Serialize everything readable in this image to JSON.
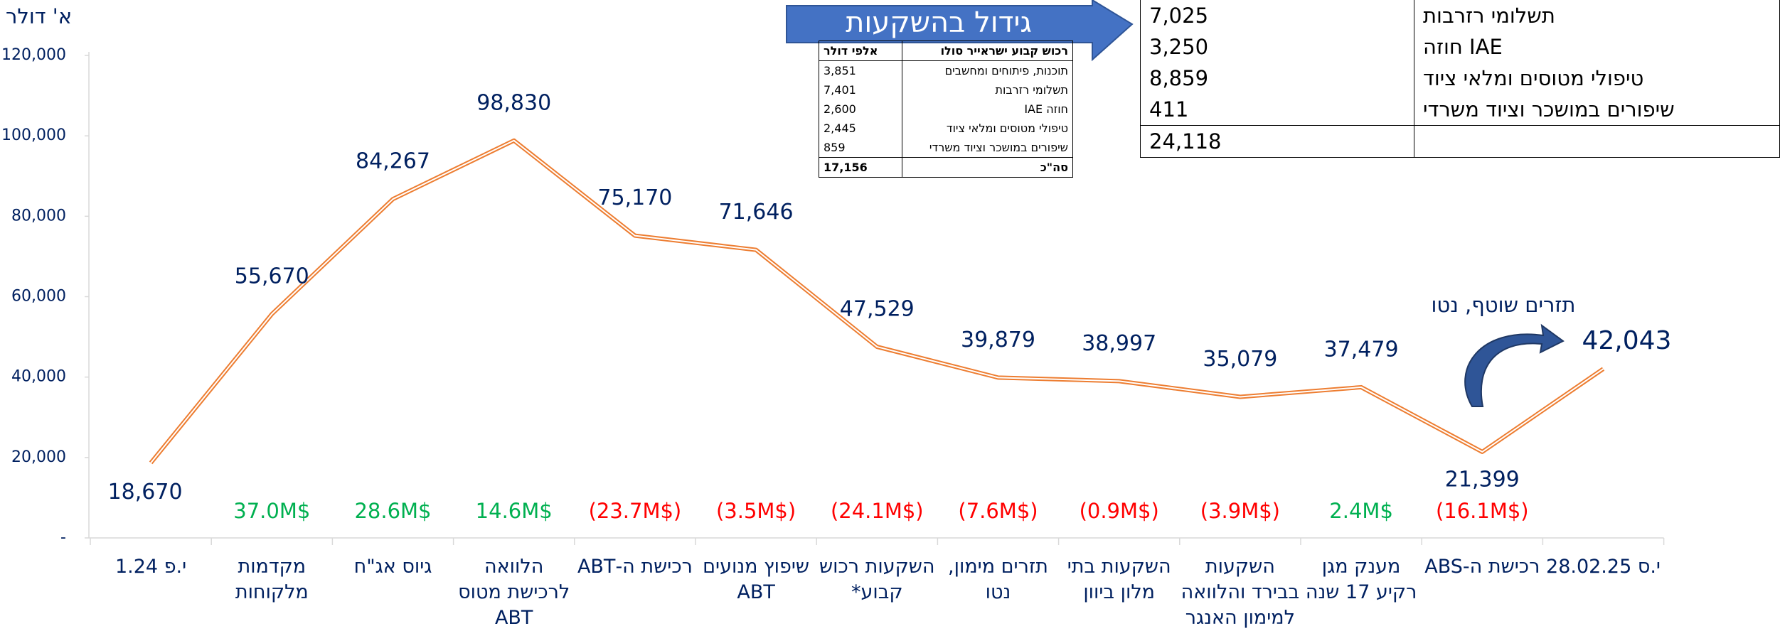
{
  "chart_data": {
    "type": "line",
    "y_axis_label": "א' דולר",
    "categories": [
      "י.פ 1.24",
      "מקדמות מלקוחות",
      "גיוס אג\"ח",
      "הלוואה לרכישת מטוס ABT",
      "רכישת ה-ABT",
      "שיפוץ מנועים ABT",
      "השקעות רכוש קבוע*",
      "תזרים מימון, נטו",
      "השקעות בתי מלון ביוון",
      "השקעות בבירד והלוואה למימון האנגר",
      "מענק מגן רקיע 17 שנה",
      "רכישת ה-ABS",
      "י.ס 28.02.25"
    ],
    "series": [
      {
        "name": "תזרים",
        "color": "#ed7d31",
        "values": [
          18670,
          55670,
          84267,
          98830,
          75170,
          71646,
          47529,
          39879,
          38997,
          35079,
          37479,
          21399,
          42043
        ],
        "value_labels": [
          "18,670",
          "55,670",
          "84,267",
          "98,830",
          "75,170",
          "71,646",
          "47,529",
          "39,879",
          "38,997",
          "35,079",
          "37,479",
          "21,399",
          "42,043"
        ]
      }
    ],
    "change_labels": [
      null,
      "37.0M$",
      "28.6M$",
      "14.6M$",
      "(23.7M$)",
      "(3.5M$)",
      "(24.1M$)",
      "(7.6M$)",
      "(0.9M$)",
      "(3.9M$)",
      "2.4M$",
      "(16.1M$)",
      null
    ],
    "change_colors": [
      null,
      "#00b050",
      "#00b050",
      "#00b050",
      "#ff0000",
      "#ff0000",
      "#ff0000",
      "#ff0000",
      "#ff0000",
      "#ff0000",
      "#00b050",
      "#ff0000",
      null
    ],
    "ylim": [
      0,
      120000
    ],
    "yticks": [
      {
        "value": 0,
        "label": "-"
      },
      {
        "value": 20000,
        "label": "20,000"
      },
      {
        "value": 40000,
        "label": "40,000"
      },
      {
        "value": 60000,
        "label": "60,000"
      },
      {
        "value": 80000,
        "label": "80,000"
      },
      {
        "value": 100000,
        "label": "100,000"
      },
      {
        "value": 120000,
        "label": "120,000"
      }
    ],
    "grid": false,
    "banner": "גידול בהשקעות",
    "annotation": "תזרים שוטף, נטו"
  },
  "small_table": {
    "header": [
      "רכוש קבוע ישראייר סולו",
      "אלפי דולר"
    ],
    "rows": [
      [
        "תוכנות, פיתוחים ומחשבים",
        "3,851"
      ],
      [
        "תשלומי רזרבות",
        "7,401"
      ],
      [
        "חוזה IAE",
        "2,600"
      ],
      [
        "טיפולי מטוסים ומלאי ציוד",
        "2,445"
      ],
      [
        "שיפורים במושכר וציוד משרדי",
        "859"
      ]
    ],
    "total": [
      "סה\"כ",
      "17,156"
    ]
  },
  "large_table": {
    "rows": [
      [
        "תשלומי רזרבות",
        "7,025"
      ],
      [
        "חוזה IAE",
        "3,250"
      ],
      [
        "טיפולי מטוסים ומלאי ציוד",
        "8,859"
      ],
      [
        "שיפורים במושכר וציוד משרדי",
        "411"
      ]
    ],
    "total": "24,118"
  }
}
